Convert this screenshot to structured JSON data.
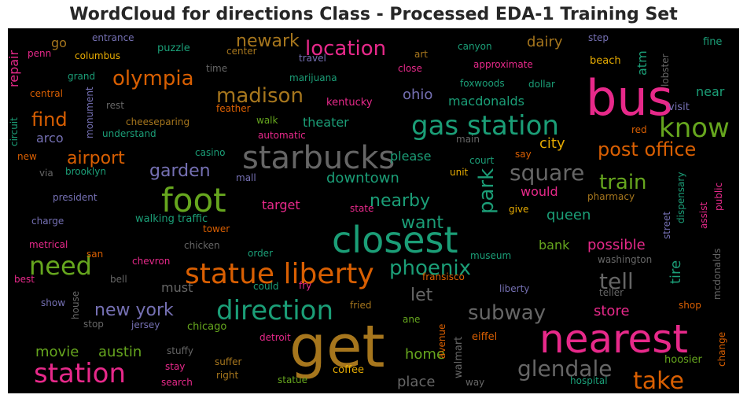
{
  "chart_data": {
    "type": "wordcloud",
    "title": "WordCloud for directions Class - Processed EDA-1 Training Set",
    "background": "#000000",
    "colormap": "Dark2",
    "palette": {
      "teal": "#1b9e77",
      "orange": "#d95f02",
      "purple": "#7570b3",
      "pink": "#e7298a",
      "green": "#66a61e",
      "gold": "#e6ab02",
      "brown": "#a6761d",
      "gray": "#666666"
    },
    "words": [
      {
        "text": "get",
        "weight": 1.0,
        "color": "#a6761d"
      },
      {
        "text": "bus",
        "weight": 0.84,
        "color": "#e7298a"
      },
      {
        "text": "nearest",
        "weight": 0.68,
        "color": "#e7298a"
      },
      {
        "text": "closest",
        "weight": 0.66,
        "color": "#1b9e77"
      },
      {
        "text": "gas station",
        "weight": 0.52,
        "color": "#1b9e77"
      },
      {
        "text": "foot",
        "weight": 0.6,
        "color": "#66a61e"
      },
      {
        "text": "starbucks",
        "weight": 0.56,
        "color": "#666666"
      },
      {
        "text": "statue liberty",
        "weight": 0.5,
        "color": "#d95f02"
      },
      {
        "text": "direction",
        "weight": 0.5,
        "color": "#1b9e77"
      },
      {
        "text": "station",
        "weight": 0.5,
        "color": "#e7298a"
      },
      {
        "text": "know",
        "weight": 0.5,
        "color": "#66a61e"
      },
      {
        "text": "need",
        "weight": 0.46,
        "color": "#66a61e"
      },
      {
        "text": "take",
        "weight": 0.4,
        "color": "#d95f02"
      },
      {
        "text": "glendale",
        "weight": 0.38,
        "color": "#666666"
      },
      {
        "text": "phoenix",
        "weight": 0.36,
        "color": "#1b9e77"
      },
      {
        "text": "square",
        "weight": 0.34,
        "color": "#666666"
      },
      {
        "text": "olympia",
        "weight": 0.34,
        "color": "#d95f02"
      },
      {
        "text": "park",
        "weight": 0.34,
        "color": "#1b9e77"
      },
      {
        "text": "post office",
        "weight": 0.32,
        "color": "#d95f02"
      },
      {
        "text": "subway",
        "weight": 0.32,
        "color": "#666666"
      },
      {
        "text": "location",
        "weight": 0.3,
        "color": "#e7298a"
      },
      {
        "text": "madison",
        "weight": 0.3,
        "color": "#a6761d"
      },
      {
        "text": "tell",
        "weight": 0.3,
        "color": "#666666"
      },
      {
        "text": "train",
        "weight": 0.3,
        "color": "#66a61e"
      },
      {
        "text": "new york",
        "weight": 0.28,
        "color": "#7570b3"
      },
      {
        "text": "airport",
        "weight": 0.28,
        "color": "#d95f02"
      },
      {
        "text": "find",
        "weight": 0.28,
        "color": "#d95f02"
      },
      {
        "text": "garden",
        "weight": 0.26,
        "color": "#7570b3"
      },
      {
        "text": "nearby",
        "weight": 0.26,
        "color": "#1b9e77"
      },
      {
        "text": "want",
        "weight": 0.26,
        "color": "#1b9e77"
      },
      {
        "text": "let",
        "weight": 0.26,
        "color": "#666666"
      },
      {
        "text": "newark",
        "weight": 0.24,
        "color": "#a6761d"
      },
      {
        "text": "movie",
        "weight": 0.22,
        "color": "#66a61e"
      },
      {
        "text": "austin",
        "weight": 0.22,
        "color": "#66a61e"
      },
      {
        "text": "downtown",
        "weight": 0.2,
        "color": "#1b9e77"
      },
      {
        "text": "city",
        "weight": 0.2,
        "color": "#e6ab02"
      },
      {
        "text": "queen",
        "weight": 0.2,
        "color": "#1b9e77"
      },
      {
        "text": "possible",
        "weight": 0.2,
        "color": "#e7298a"
      },
      {
        "text": "store",
        "weight": 0.2,
        "color": "#e7298a"
      },
      {
        "text": "home",
        "weight": 0.2,
        "color": "#66a61e"
      },
      {
        "text": "place",
        "weight": 0.2,
        "color": "#666666"
      },
      {
        "text": "ohio",
        "weight": 0.2,
        "color": "#7570b3"
      },
      {
        "text": "theater",
        "weight": 0.19,
        "color": "#1b9e77"
      },
      {
        "text": "macdonalds",
        "weight": 0.19,
        "color": "#1b9e77"
      },
      {
        "text": "dairy",
        "weight": 0.19,
        "color": "#a6761d"
      },
      {
        "text": "tire",
        "weight": 0.19,
        "color": "#1b9e77"
      },
      {
        "text": "bank",
        "weight": 0.19,
        "color": "#66a61e"
      },
      {
        "text": "would",
        "weight": 0.18,
        "color": "#e7298a"
      },
      {
        "text": "please",
        "weight": 0.18,
        "color": "#1b9e77"
      },
      {
        "text": "near",
        "weight": 0.17,
        "color": "#1b9e77"
      },
      {
        "text": "atm",
        "weight": 0.17,
        "color": "#1b9e77"
      },
      {
        "text": "arco",
        "weight": 0.17,
        "color": "#7570b3"
      },
      {
        "text": "target",
        "weight": 0.17,
        "color": "#e7298a"
      },
      {
        "text": "must",
        "weight": 0.17,
        "color": "#666666"
      },
      {
        "text": "go",
        "weight": 0.17,
        "color": "#a6761d"
      },
      {
        "text": "repair",
        "weight": 0.15,
        "color": "#e7298a"
      },
      {
        "text": "walking traffic",
        "weight": 0.14,
        "color": "#1b9e77"
      },
      {
        "text": "kentucky",
        "weight": 0.13,
        "color": "#e7298a"
      },
      {
        "text": "walmart",
        "weight": 0.13,
        "color": "#666666"
      },
      {
        "text": "coffee",
        "weight": 0.13,
        "color": "#e6ab02"
      },
      {
        "text": "chicago",
        "weight": 0.13,
        "color": "#66a61e"
      },
      {
        "text": "entrance",
        "weight": 0.12,
        "color": "#7570b3"
      },
      {
        "text": "puzzle",
        "weight": 0.12,
        "color": "#1b9e77"
      },
      {
        "text": "center",
        "weight": 0.12,
        "color": "#a6761d"
      },
      {
        "text": "art",
        "weight": 0.12,
        "color": "#a6761d"
      },
      {
        "text": "canyon",
        "weight": 0.12,
        "color": "#1b9e77"
      },
      {
        "text": "step",
        "weight": 0.12,
        "color": "#7570b3"
      },
      {
        "text": "fine",
        "weight": 0.12,
        "color": "#1b9e77"
      },
      {
        "text": "penn",
        "weight": 0.12,
        "color": "#e7298a"
      },
      {
        "text": "columbus",
        "weight": 0.12,
        "color": "#e6ab02"
      },
      {
        "text": "travel",
        "weight": 0.12,
        "color": "#7570b3"
      },
      {
        "text": "close",
        "weight": 0.12,
        "color": "#e7298a"
      },
      {
        "text": "approximate",
        "weight": 0.12,
        "color": "#e7298a"
      },
      {
        "text": "beach",
        "weight": 0.12,
        "color": "#e6ab02"
      },
      {
        "text": "lobster",
        "weight": 0.12,
        "color": "#666666"
      },
      {
        "text": "grand",
        "weight": 0.12,
        "color": "#1b9e77"
      },
      {
        "text": "time",
        "weight": 0.12,
        "color": "#666666"
      },
      {
        "text": "marijuana",
        "weight": 0.12,
        "color": "#1b9e77"
      },
      {
        "text": "foxwoods",
        "weight": 0.12,
        "color": "#1b9e77"
      },
      {
        "text": "dollar",
        "weight": 0.12,
        "color": "#1b9e77"
      },
      {
        "text": "central",
        "weight": 0.12,
        "color": "#d95f02"
      },
      {
        "text": "rest",
        "weight": 0.12,
        "color": "#666666"
      },
      {
        "text": "feather",
        "weight": 0.12,
        "color": "#d95f02"
      },
      {
        "text": "visit",
        "weight": 0.12,
        "color": "#7570b3"
      },
      {
        "text": "circuit",
        "weight": 0.12,
        "color": "#1b9e77"
      },
      {
        "text": "monument",
        "weight": 0.12,
        "color": "#7570b3"
      },
      {
        "text": "cheeseparing",
        "weight": 0.12,
        "color": "#a6761d"
      },
      {
        "text": "walk",
        "weight": 0.12,
        "color": "#66a61e"
      },
      {
        "text": "understand",
        "weight": 0.12,
        "color": "#1b9e77"
      },
      {
        "text": "automatic",
        "weight": 0.12,
        "color": "#e7298a"
      },
      {
        "text": "red",
        "weight": 0.12,
        "color": "#d95f02"
      },
      {
        "text": "main",
        "weight": 0.12,
        "color": "#666666"
      },
      {
        "text": "casino",
        "weight": 0.12,
        "color": "#1b9e77"
      },
      {
        "text": "court",
        "weight": 0.12,
        "color": "#1b9e77"
      },
      {
        "text": "say",
        "weight": 0.12,
        "color": "#d95f02"
      },
      {
        "text": "new",
        "weight": 0.12,
        "color": "#d95f02"
      },
      {
        "text": "via",
        "weight": 0.12,
        "color": "#666666"
      },
      {
        "text": "brooklyn",
        "weight": 0.12,
        "color": "#1b9e77"
      },
      {
        "text": "mall",
        "weight": 0.12,
        "color": "#7570b3"
      },
      {
        "text": "unit",
        "weight": 0.12,
        "color": "#e6ab02"
      },
      {
        "text": "pharmacy",
        "weight": 0.12,
        "color": "#a6761d"
      },
      {
        "text": "president",
        "weight": 0.12,
        "color": "#7570b3"
      },
      {
        "text": "state",
        "weight": 0.12,
        "color": "#e7298a"
      },
      {
        "text": "give",
        "weight": 0.12,
        "color": "#e6ab02"
      },
      {
        "text": "street",
        "weight": 0.12,
        "color": "#7570b3"
      },
      {
        "text": "dispensary",
        "weight": 0.12,
        "color": "#1b9e77"
      },
      {
        "text": "public",
        "weight": 0.12,
        "color": "#e7298a"
      },
      {
        "text": "assist",
        "weight": 0.12,
        "color": "#e7298a"
      },
      {
        "text": "charge",
        "weight": 0.12,
        "color": "#7570b3"
      },
      {
        "text": "tower",
        "weight": 0.12,
        "color": "#d95f02"
      },
      {
        "text": "metrical",
        "weight": 0.12,
        "color": "#e7298a"
      },
      {
        "text": "san",
        "weight": 0.12,
        "color": "#d95f02"
      },
      {
        "text": "chicken",
        "weight": 0.12,
        "color": "#666666"
      },
      {
        "text": "order",
        "weight": 0.12,
        "color": "#1b9e77"
      },
      {
        "text": "museum",
        "weight": 0.12,
        "color": "#1b9e77"
      },
      {
        "text": "washington",
        "weight": 0.12,
        "color": "#666666"
      },
      {
        "text": "mcdonalds",
        "weight": 0.12,
        "color": "#666666"
      },
      {
        "text": "best",
        "weight": 0.12,
        "color": "#e7298a"
      },
      {
        "text": "chevron",
        "weight": 0.12,
        "color": "#e7298a"
      },
      {
        "text": "bell",
        "weight": 0.12,
        "color": "#666666"
      },
      {
        "text": "could",
        "weight": 0.12,
        "color": "#1b9e77"
      },
      {
        "text": "fry",
        "weight": 0.12,
        "color": "#e7298a"
      },
      {
        "text": "fransisco",
        "weight": 0.12,
        "color": "#d95f02"
      },
      {
        "text": "liberty",
        "weight": 0.12,
        "color": "#7570b3"
      },
      {
        "text": "teller",
        "weight": 0.12,
        "color": "#666666"
      },
      {
        "text": "show",
        "weight": 0.12,
        "color": "#7570b3"
      },
      {
        "text": "house",
        "weight": 0.12,
        "color": "#666666"
      },
      {
        "text": "fried",
        "weight": 0.12,
        "color": "#a6761d"
      },
      {
        "text": "shop",
        "weight": 0.12,
        "color": "#d95f02"
      },
      {
        "text": "stop",
        "weight": 0.12,
        "color": "#666666"
      },
      {
        "text": "jersey",
        "weight": 0.12,
        "color": "#7570b3"
      },
      {
        "text": "ane",
        "weight": 0.12,
        "color": "#66a61e"
      },
      {
        "text": "avenue",
        "weight": 0.12,
        "color": "#d95f02"
      },
      {
        "text": "eiffel",
        "weight": 0.12,
        "color": "#d95f02"
      },
      {
        "text": "change",
        "weight": 0.12,
        "color": "#d95f02"
      },
      {
        "text": "detroit",
        "weight": 0.12,
        "color": "#e7298a"
      },
      {
        "text": "stuffy",
        "weight": 0.12,
        "color": "#666666"
      },
      {
        "text": "hoosier",
        "weight": 0.12,
        "color": "#66a61e"
      },
      {
        "text": "suffer",
        "weight": 0.12,
        "color": "#a6761d"
      },
      {
        "text": "stay",
        "weight": 0.12,
        "color": "#e7298a"
      },
      {
        "text": "right",
        "weight": 0.12,
        "color": "#a6761d"
      },
      {
        "text": "statue",
        "weight": 0.12,
        "color": "#66a61e"
      },
      {
        "text": "way",
        "weight": 0.12,
        "color": "#666666"
      },
      {
        "text": "hospital",
        "weight": 0.12,
        "color": "#1b9e77"
      },
      {
        "text": "search",
        "weight": 0.12,
        "color": "#e7298a"
      }
    ]
  }
}
